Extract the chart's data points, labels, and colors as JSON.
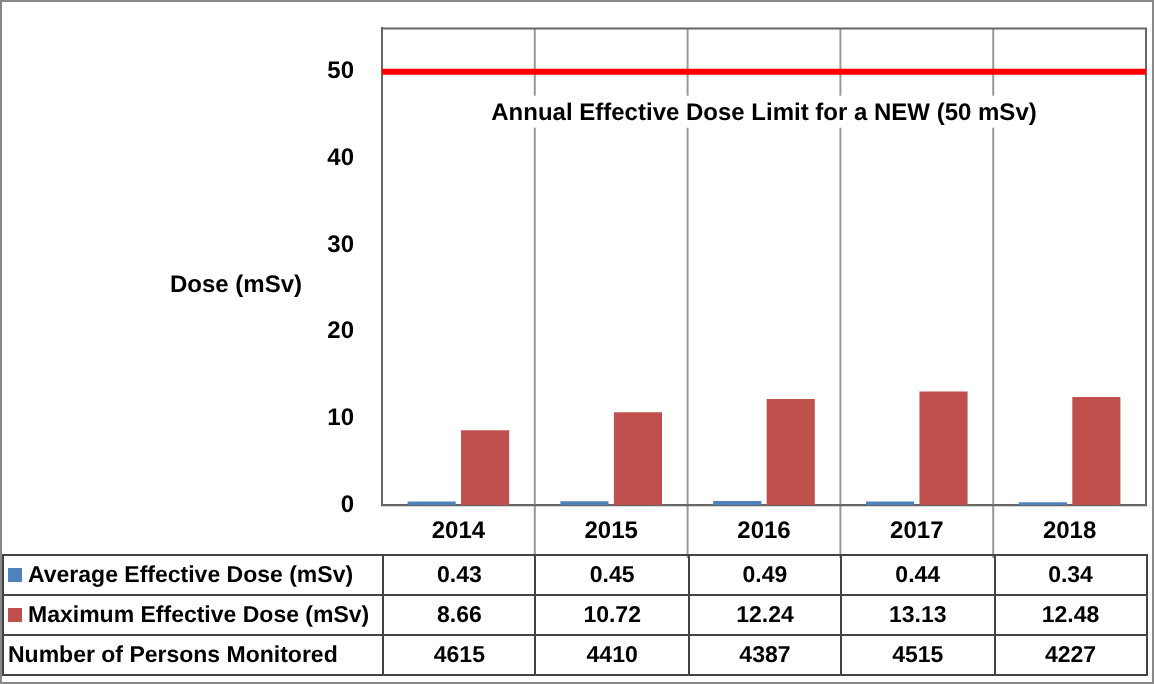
{
  "chart_data": {
    "type": "bar",
    "ylabel": "Dose (mSv)",
    "categories": [
      "2014",
      "2015",
      "2016",
      "2017",
      "2018"
    ],
    "series": [
      {
        "name": "Average Effective Dose (mSv)",
        "color": "#4f81bd",
        "values": [
          0.43,
          0.45,
          0.49,
          0.44,
          0.34
        ]
      },
      {
        "name": "Maximum Effective Dose (mSv)",
        "color": "#c0504d",
        "values": [
          8.66,
          10.72,
          12.24,
          13.13,
          12.48
        ]
      }
    ],
    "ylim": [
      0,
      55
    ],
    "yticks": [
      0,
      10,
      20,
      30,
      40,
      50
    ],
    "ref_lines": [
      {
        "axis": "y",
        "value": 50,
        "label": "Annual Effective Dose Limit for a NEW (50 mSv)",
        "color": "#ff0000"
      }
    ],
    "annotations": [
      "Number of Persons Monitored",
      "4615",
      "4410",
      "4387",
      "4515",
      "4227"
    ],
    "data_labels": true,
    "legend": "bottom",
    "grid": false
  }
}
